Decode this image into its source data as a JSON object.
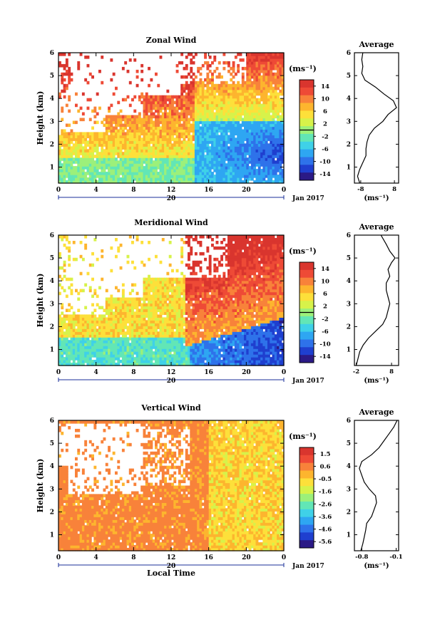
{
  "chart_data": [
    {
      "type": "heatmap",
      "title": "Zonal Wind",
      "ylabel": "Height (km)",
      "xticks": [
        "0",
        "4",
        "8",
        "12",
        "16",
        "20",
        "0"
      ],
      "yticks": [
        "1",
        "2",
        "3",
        "4",
        "5",
        "6"
      ],
      "xlim": [
        0,
        24
      ],
      "ylim": [
        0.3,
        6
      ],
      "date_day": "20",
      "date_label": "Jan 2017",
      "colorbar": {
        "unit": "(ms⁻¹)",
        "ticks": [
          "14",
          "10",
          "6",
          "2",
          "-2",
          "-6",
          "-10",
          "-14"
        ],
        "range": [
          -16,
          16
        ]
      },
      "profile": {
        "title": "Average",
        "xlabel": "(ms⁻¹)",
        "xticks": [
          "-8",
          "8"
        ],
        "yticks": [
          "1",
          "2",
          "3",
          "4",
          "5",
          "6"
        ],
        "xlim": [
          -11,
          10
        ],
        "height": [
          0.3,
          0.6,
          0.9,
          1.2,
          1.5,
          1.8,
          2.1,
          2.4,
          2.7,
          3.0,
          3.3,
          3.6,
          3.9,
          4.2,
          4.5,
          4.8,
          5.1,
          5.4,
          5.7,
          6.0
        ],
        "values": [
          -8.5,
          -9.5,
          -8.5,
          -7.0,
          -5.5,
          -5.5,
          -5.0,
          -4.0,
          -1.5,
          2.5,
          5.0,
          9.0,
          7.5,
          3.0,
          -1.0,
          -6.0,
          -7.5,
          -7.0,
          -7.5,
          -7.0
        ]
      }
    },
    {
      "type": "heatmap",
      "title": "Meridional Wind",
      "ylabel": "Height (km)",
      "xticks": [
        "0",
        "4",
        "8",
        "12",
        "16",
        "20",
        "0"
      ],
      "yticks": [
        "1",
        "2",
        "3",
        "4",
        "5",
        "6"
      ],
      "xlim": [
        0,
        24
      ],
      "ylim": [
        0.3,
        6
      ],
      "date_day": "20",
      "date_label": "Jan 2017",
      "colorbar": {
        "unit": "(ms⁻¹)",
        "ticks": [
          "14",
          "10",
          "6",
          "2",
          "-2",
          "-6",
          "-10",
          "-14"
        ],
        "range": [
          -16,
          16
        ]
      },
      "profile": {
        "title": "Average",
        "xlabel": "(ms⁻¹)",
        "xticks": [
          "-2",
          "8"
        ],
        "yticks": [
          "1",
          "2",
          "3",
          "4",
          "5",
          "6"
        ],
        "xlim": [
          -2.5,
          10
        ],
        "height": [
          0.3,
          0.6,
          0.9,
          1.2,
          1.5,
          1.8,
          2.1,
          2.4,
          2.7,
          3.0,
          3.3,
          3.6,
          3.9,
          4.2,
          4.5,
          4.8,
          5.0,
          5.3,
          5.6,
          6.0
        ],
        "values": [
          -2.0,
          -1.5,
          -1.0,
          0.0,
          1.5,
          3.5,
          5.5,
          6.5,
          7.0,
          7.5,
          7.0,
          6.5,
          6.5,
          7.5,
          7.0,
          8.0,
          9.0,
          7.5,
          6.5,
          5.0
        ]
      }
    },
    {
      "type": "heatmap",
      "title": "Vertical Wind",
      "ylabel": "Height (km)",
      "xlabel": "Local Time",
      "xticks": [
        "0",
        "4",
        "8",
        "12",
        "16",
        "20",
        "0"
      ],
      "yticks": [
        "1",
        "2",
        "3",
        "4",
        "5",
        "6"
      ],
      "xlim": [
        0,
        24
      ],
      "ylim": [
        0.3,
        6
      ],
      "date_day": "20",
      "date_label": "Jan 2017",
      "colorbar": {
        "unit": "(ms⁻¹)",
        "ticks": [
          "1.5",
          "0.6",
          "-0.5",
          "-1.6",
          "-2.6",
          "-3.6",
          "-4.6",
          "-5.6"
        ],
        "range": [
          -6.1,
          2.0
        ]
      },
      "profile": {
        "title": "Average",
        "xlabel": "(ms⁻¹)",
        "xticks": [
          "-0.8",
          "-0.1"
        ],
        "yticks": [
          "1",
          "2",
          "3",
          "4",
          "5",
          "6"
        ],
        "xlim": [
          -0.95,
          -0.05
        ],
        "height": [
          0.3,
          0.6,
          0.9,
          1.2,
          1.5,
          1.8,
          2.1,
          2.4,
          2.7,
          3.0,
          3.3,
          3.6,
          3.9,
          4.2,
          4.5,
          4.8,
          5.1,
          5.4,
          5.7,
          6.0
        ],
        "values": [
          -0.82,
          -0.78,
          -0.75,
          -0.72,
          -0.7,
          -0.6,
          -0.55,
          -0.5,
          -0.52,
          -0.65,
          -0.75,
          -0.8,
          -0.85,
          -0.8,
          -0.6,
          -0.45,
          -0.35,
          -0.25,
          -0.15,
          -0.08
        ]
      }
    }
  ]
}
